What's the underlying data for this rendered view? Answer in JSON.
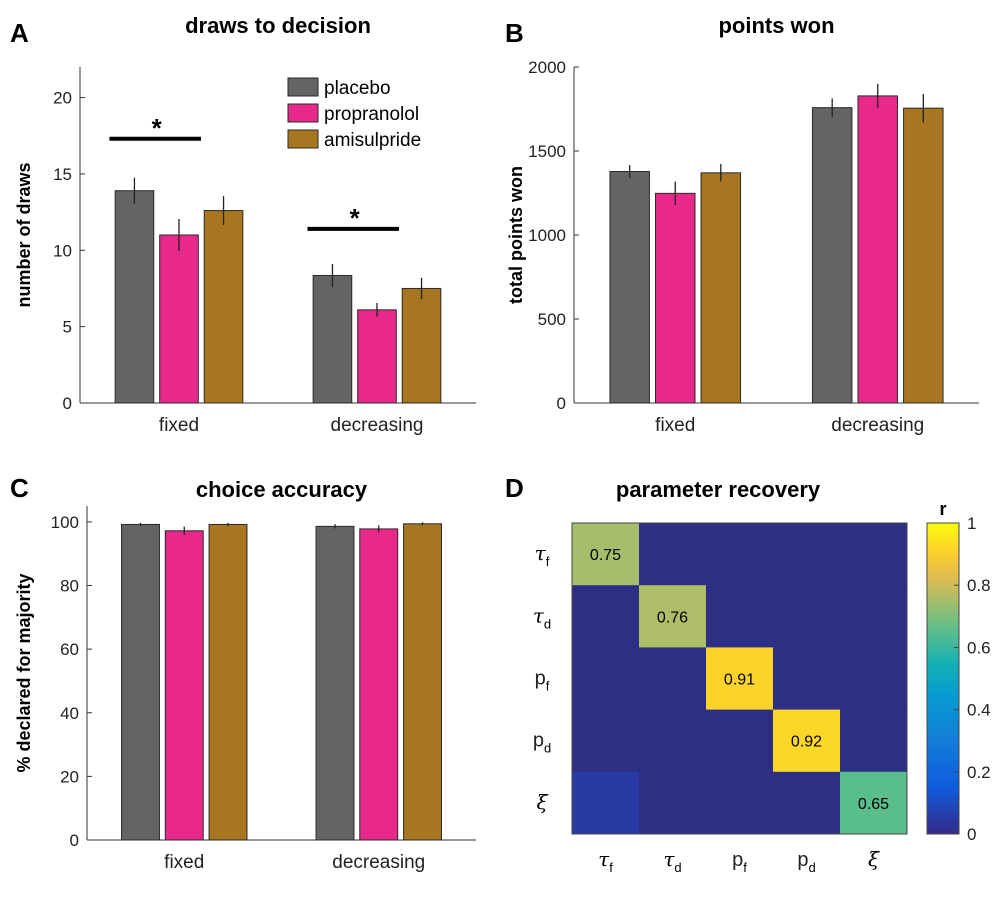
{
  "colors": {
    "placebo": "#646464",
    "propranolol": "#e8288a",
    "amisulpride": "#a87520",
    "heat_off": "#2d2f85"
  },
  "legend": [
    "placebo",
    "propranolol",
    "amisulpride"
  ],
  "chart_data": [
    {
      "panel": "A",
      "type": "bar",
      "title": "draws to decision",
      "ylabel": "number of draws",
      "xlabel": "",
      "categories": [
        "fixed",
        "decreasing"
      ],
      "ylim": [
        0,
        22
      ],
      "yticks": [
        0,
        5,
        10,
        15,
        20
      ],
      "series": [
        {
          "name": "placebo",
          "values": [
            13.9,
            8.35
          ],
          "errors": [
            0.85,
            0.75
          ]
        },
        {
          "name": "propranolol",
          "values": [
            11.0,
            6.1
          ],
          "errors": [
            1.05,
            0.45
          ]
        },
        {
          "name": "amisulpride",
          "values": [
            12.6,
            7.5
          ],
          "errors": [
            0.95,
            0.7
          ]
        }
      ],
      "significance": [
        {
          "category": "fixed",
          "between": [
            "placebo",
            "propranolol"
          ],
          "label": "*",
          "y": 17.3
        },
        {
          "category": "decreasing",
          "between": [
            "placebo",
            "propranolol"
          ],
          "label": "*",
          "y": 11.4
        }
      ],
      "legend_position": "top-right"
    },
    {
      "panel": "B",
      "type": "bar",
      "title": "points won",
      "ylabel": "total points won",
      "xlabel": "",
      "categories": [
        "fixed",
        "decreasing"
      ],
      "ylim": [
        0,
        2000
      ],
      "yticks": [
        0,
        500,
        1000,
        1500,
        2000
      ],
      "series": [
        {
          "name": "placebo",
          "values": [
            1378,
            1758
          ],
          "errors": [
            38,
            55
          ]
        },
        {
          "name": "propranolol",
          "values": [
            1248,
            1828
          ],
          "errors": [
            70,
            72
          ]
        },
        {
          "name": "amisulpride",
          "values": [
            1370,
            1755
          ],
          "errors": [
            52,
            85
          ]
        }
      ]
    },
    {
      "panel": "C",
      "type": "bar",
      "title": "choice accuracy",
      "ylabel": "% declared for majority",
      "xlabel": "",
      "categories": [
        "fixed",
        "decreasing"
      ],
      "ylim": [
        0,
        105
      ],
      "yticks": [
        0,
        20,
        40,
        60,
        80,
        100
      ],
      "series": [
        {
          "name": "placebo",
          "values": [
            99.2,
            98.6
          ],
          "errors": [
            0.5,
            0.7
          ]
        },
        {
          "name": "propranolol",
          "values": [
            97.2,
            97.8
          ],
          "errors": [
            1.3,
            1.1
          ]
        },
        {
          "name": "amisulpride",
          "values": [
            99.2,
            99.4
          ],
          "errors": [
            0.5,
            0.5
          ]
        }
      ]
    },
    {
      "panel": "D",
      "type": "heatmap",
      "title": "parameter recovery",
      "colorbar_label": "r",
      "colorbar_ticks": [
        0,
        0.2,
        0.4,
        0.6,
        0.8,
        1
      ],
      "clim": [
        0,
        1
      ],
      "parameters": [
        {
          "base": "τ",
          "sub": "f"
        },
        {
          "base": "τ",
          "sub": "d"
        },
        {
          "base": "p",
          "sub": "f"
        },
        {
          "base": "p",
          "sub": "d"
        },
        {
          "base": "ξ",
          "sub": ""
        }
      ],
      "matrix": [
        [
          0.75,
          0.0,
          0.0,
          0.0,
          0.0
        ],
        [
          0.0,
          0.76,
          0.0,
          0.0,
          0.0
        ],
        [
          0.0,
          0.0,
          0.91,
          0.0,
          0.0
        ],
        [
          0.0,
          0.0,
          0.0,
          0.92,
          0.0
        ],
        [
          0.05,
          0.0,
          0.0,
          0.0,
          0.65
        ]
      ],
      "cell_labels": [
        {
          "row": 0,
          "col": 0,
          "text": "0.75"
        },
        {
          "row": 1,
          "col": 1,
          "text": "0.76"
        },
        {
          "row": 2,
          "col": 2,
          "text": "0.91"
        },
        {
          "row": 3,
          "col": 3,
          "text": "0.92"
        },
        {
          "row": 4,
          "col": 4,
          "text": "0.65"
        }
      ]
    }
  ]
}
